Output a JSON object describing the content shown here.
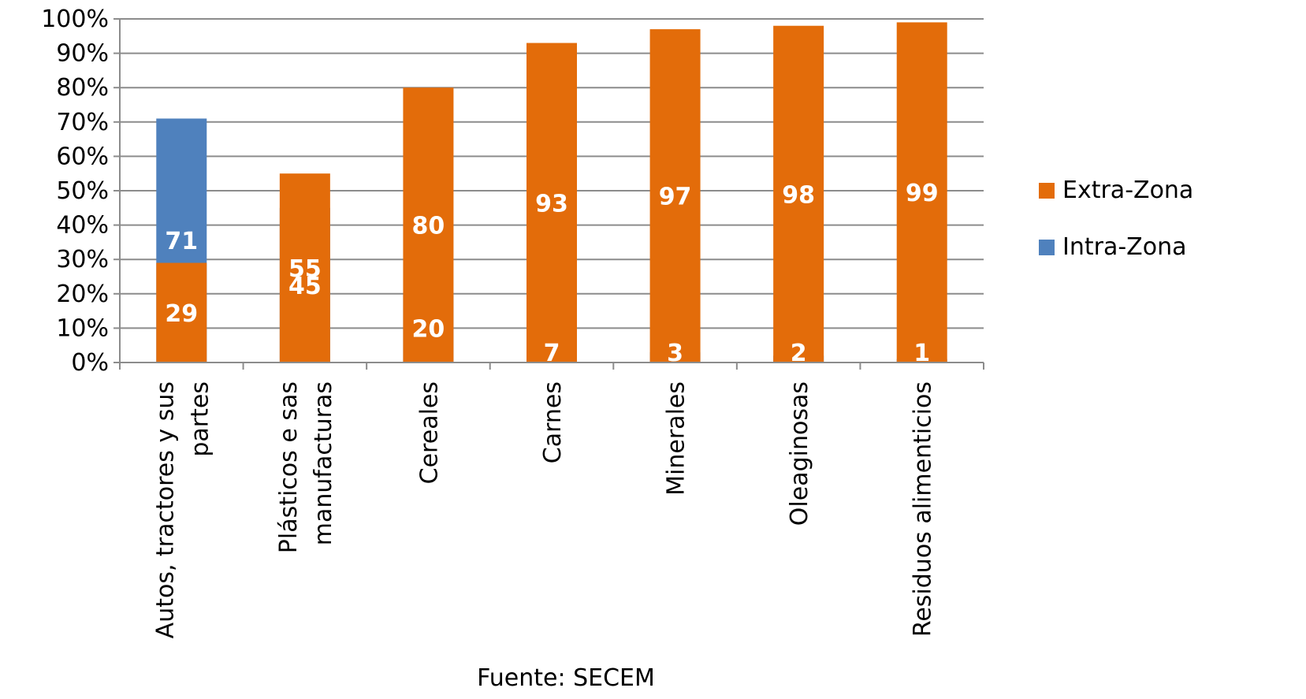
{
  "chart_data": {
    "type": "bar",
    "stacked": true,
    "percent_stacked": true,
    "categories": [
      [
        "Autos, tractores y sus",
        "partes"
      ],
      [
        "Plásticos e sas",
        "manufacturas"
      ],
      [
        "Cereales"
      ],
      [
        "Carnes"
      ],
      [
        "Minerales"
      ],
      [
        "Oleaginosas"
      ],
      [
        "Residuos alimenticios"
      ]
    ],
    "series": [
      {
        "name": "Intra-Zona",
        "color": "#4F81BD",
        "values": [
          71,
          45,
          20,
          7,
          3,
          2,
          1
        ]
      },
      {
        "name": "Extra-Zona",
        "color": "#E36C0A",
        "values": [
          29,
          55,
          80,
          93,
          97,
          98,
          99
        ]
      }
    ],
    "y_ticks": [
      "0%",
      "10%",
      "20%",
      "30%",
      "40%",
      "50%",
      "60%",
      "70%",
      "80%",
      "90%",
      "100%"
    ],
    "ylim": [
      0,
      100
    ],
    "grid": true,
    "legend": "right",
    "source": "Fuente: SECEM"
  }
}
